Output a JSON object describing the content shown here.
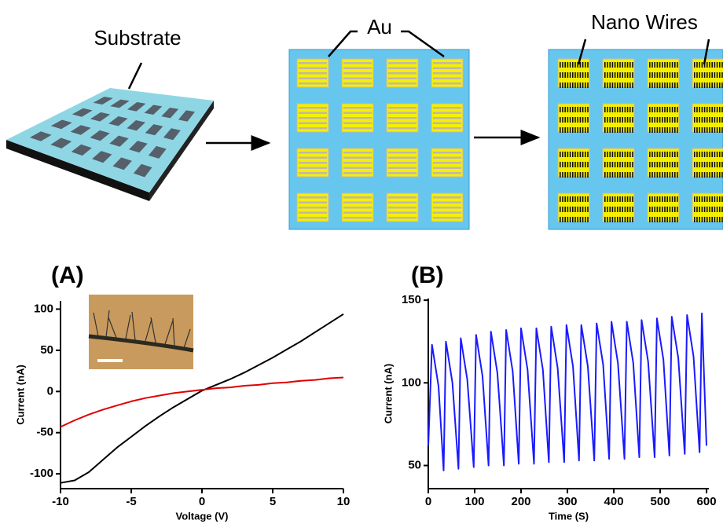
{
  "diagram": {
    "labels": [
      "Substrate",
      "Au",
      "Nano Wires"
    ]
  },
  "chart_data": [
    {
      "type": "line",
      "title": "(A)",
      "x_label": "Voltage (V)",
      "y_label": "Current (nA)",
      "x": [
        -10,
        -9,
        -8,
        -7,
        -6,
        -5,
        -4,
        -3,
        -2,
        -1,
        0,
        1,
        2,
        3,
        4,
        5,
        6,
        7,
        8,
        9,
        10
      ],
      "series": [
        {
          "color": "#000000",
          "values": [
            -111,
            -108,
            -98,
            -83,
            -68,
            -55,
            -42,
            -30,
            -19,
            -9,
            1,
            8,
            15,
            23,
            32,
            41,
            51,
            61,
            72,
            83,
            94
          ]
        },
        {
          "color": "#e00000",
          "values": [
            -43,
            -35,
            -28,
            -22,
            -17,
            -12,
            -8,
            -5,
            -2,
            0,
            2,
            4,
            5,
            7,
            8,
            10,
            11,
            13,
            14,
            16,
            17
          ]
        }
      ],
      "xlim": [
        -10,
        10
      ],
      "xticks": [
        -10,
        -5,
        0,
        5,
        10
      ],
      "ylim": [
        -118,
        110
      ],
      "yticks": [
        -100,
        -50,
        0,
        50,
        100
      ]
    },
    {
      "type": "line",
      "title": "(B)",
      "x_label": "Time (S)",
      "y_label": "Current (nA)",
      "x": [
        0,
        8,
        22,
        33,
        38,
        52,
        65,
        70,
        84,
        98,
        103,
        117,
        130,
        135,
        149,
        163,
        168,
        182,
        195,
        200,
        214,
        228,
        233,
        247,
        260,
        265,
        279,
        293,
        298,
        312,
        325,
        330,
        344,
        358,
        363,
        377,
        390,
        395,
        409,
        423,
        428,
        442,
        455,
        460,
        474,
        488,
        493,
        507,
        520,
        525,
        539,
        553,
        558,
        572,
        585,
        590,
        600
      ],
      "series": [
        {
          "color": "#1a1aff",
          "values": [
            62,
            123,
            98,
            47,
            125,
            100,
            48,
            127,
            102,
            49,
            129,
            104,
            50,
            131,
            106,
            50,
            132,
            107,
            51,
            133,
            108,
            51,
            133,
            108,
            52,
            134,
            109,
            52,
            135,
            110,
            53,
            135,
            110,
            53,
            136,
            111,
            54,
            137,
            112,
            54,
            137,
            112,
            55,
            138,
            113,
            55,
            139,
            114,
            56,
            140,
            115,
            57,
            141,
            116,
            58,
            142,
            62
          ]
        }
      ],
      "xlim": [
        0,
        605
      ],
      "xticks": [
        0,
        100,
        200,
        300,
        400,
        500,
        600
      ],
      "ylim": [
        36,
        151
      ],
      "yticks": [
        50,
        100,
        150
      ]
    }
  ]
}
